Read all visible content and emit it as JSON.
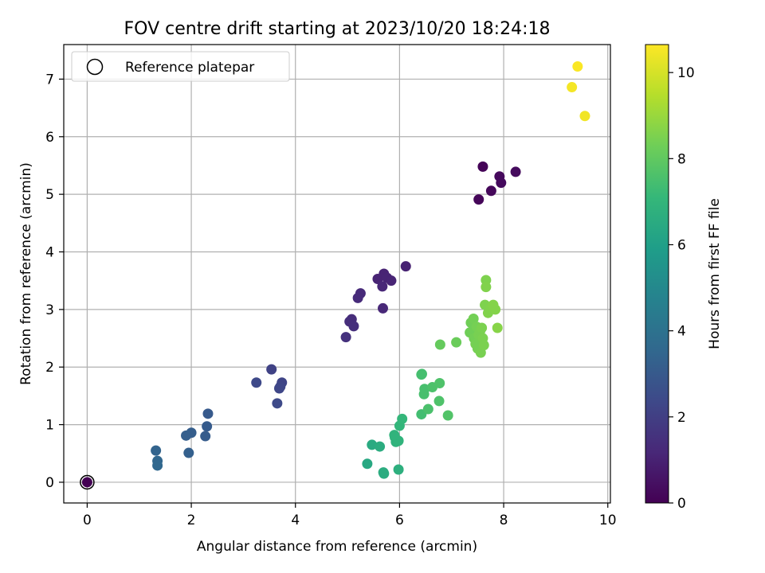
{
  "chart_data": {
    "type": "scatter",
    "title": "FOV centre drift starting at 2023/10/20 18:24:18",
    "xlabel": "Angular distance from reference (arcmin)",
    "ylabel": "Rotation from reference (arcmin)",
    "xlim": [
      -0.45,
      10.05
    ],
    "ylim": [
      -0.36,
      7.6
    ],
    "xticks": [
      0,
      2,
      4,
      6,
      8,
      10
    ],
    "yticks": [
      0,
      1,
      2,
      3,
      4,
      5,
      6,
      7
    ],
    "grid": true,
    "legend": {
      "position": "upper-left",
      "entries": [
        {
          "label": "Reference platepar",
          "marker": "open-circle"
        }
      ]
    },
    "colorbar": {
      "label": "Hours from first FF file",
      "range": [
        0,
        10.65
      ],
      "ticks": [
        0,
        2,
        4,
        6,
        8,
        10
      ],
      "colormap": "viridis"
    },
    "reference_point": {
      "x": 0,
      "y": 0
    },
    "points": [
      {
        "x": 0.0,
        "y": 0.0,
        "hours": 0.0
      },
      {
        "x": 7.6,
        "y": 5.48,
        "hours": 0.1
      },
      {
        "x": 7.52,
        "y": 4.91,
        "hours": 0.15
      },
      {
        "x": 7.76,
        "y": 5.06,
        "hours": 0.2
      },
      {
        "x": 7.92,
        "y": 5.31,
        "hours": 0.25
      },
      {
        "x": 7.95,
        "y": 5.2,
        "hours": 0.28
      },
      {
        "x": 8.23,
        "y": 5.39,
        "hours": 0.3
      },
      {
        "x": 6.12,
        "y": 3.75,
        "hours": 1.0
      },
      {
        "x": 5.58,
        "y": 3.53,
        "hours": 1.05
      },
      {
        "x": 5.7,
        "y": 3.62,
        "hours": 1.05
      },
      {
        "x": 5.76,
        "y": 3.55,
        "hours": 1.1
      },
      {
        "x": 5.84,
        "y": 3.5,
        "hours": 1.1
      },
      {
        "x": 5.67,
        "y": 3.4,
        "hours": 1.15
      },
      {
        "x": 5.68,
        "y": 3.02,
        "hours": 1.2
      },
      {
        "x": 5.25,
        "y": 3.28,
        "hours": 1.25
      },
      {
        "x": 5.2,
        "y": 3.2,
        "hours": 1.3
      },
      {
        "x": 5.08,
        "y": 2.83,
        "hours": 1.35
      },
      {
        "x": 5.04,
        "y": 2.79,
        "hours": 1.4
      },
      {
        "x": 5.12,
        "y": 2.71,
        "hours": 1.45
      },
      {
        "x": 4.97,
        "y": 2.52,
        "hours": 1.5
      },
      {
        "x": 3.54,
        "y": 1.96,
        "hours": 2.1
      },
      {
        "x": 3.74,
        "y": 1.73,
        "hours": 2.2
      },
      {
        "x": 3.71,
        "y": 1.66,
        "hours": 2.25
      },
      {
        "x": 3.69,
        "y": 1.63,
        "hours": 2.3
      },
      {
        "x": 3.25,
        "y": 1.73,
        "hours": 2.35
      },
      {
        "x": 3.65,
        "y": 1.37,
        "hours": 2.4
      },
      {
        "x": 2.32,
        "y": 1.19,
        "hours": 3.0
      },
      {
        "x": 2.3,
        "y": 0.97,
        "hours": 3.05
      },
      {
        "x": 2.27,
        "y": 0.8,
        "hours": 3.1
      },
      {
        "x": 2.0,
        "y": 0.86,
        "hours": 3.15
      },
      {
        "x": 1.9,
        "y": 0.81,
        "hours": 3.2
      },
      {
        "x": 1.95,
        "y": 0.51,
        "hours": 3.25
      },
      {
        "x": 1.32,
        "y": 0.55,
        "hours": 3.4
      },
      {
        "x": 1.35,
        "y": 0.37,
        "hours": 3.5
      },
      {
        "x": 1.35,
        "y": 0.29,
        "hours": 3.55
      },
      {
        "x": 5.38,
        "y": 0.32,
        "hours": 6.4
      },
      {
        "x": 5.47,
        "y": 0.65,
        "hours": 6.5
      },
      {
        "x": 5.62,
        "y": 0.62,
        "hours": 6.6
      },
      {
        "x": 5.69,
        "y": 0.17,
        "hours": 6.6
      },
      {
        "x": 5.7,
        "y": 0.15,
        "hours": 6.6
      },
      {
        "x": 5.98,
        "y": 0.22,
        "hours": 6.7
      },
      {
        "x": 5.91,
        "y": 0.78,
        "hours": 6.8
      },
      {
        "x": 5.93,
        "y": 0.7,
        "hours": 6.85
      },
      {
        "x": 5.98,
        "y": 0.72,
        "hours": 6.9
      },
      {
        "x": 5.9,
        "y": 0.82,
        "hours": 6.9
      },
      {
        "x": 6.0,
        "y": 0.98,
        "hours": 7.0
      },
      {
        "x": 6.05,
        "y": 1.1,
        "hours": 7.05
      },
      {
        "x": 6.42,
        "y": 1.18,
        "hours": 7.4
      },
      {
        "x": 6.42,
        "y": 1.87,
        "hours": 7.45
      },
      {
        "x": 6.43,
        "y": 1.88,
        "hours": 7.45
      },
      {
        "x": 6.48,
        "y": 1.62,
        "hours": 7.5
      },
      {
        "x": 6.47,
        "y": 1.53,
        "hours": 7.5
      },
      {
        "x": 6.55,
        "y": 1.27,
        "hours": 7.55
      },
      {
        "x": 6.63,
        "y": 1.65,
        "hours": 7.6
      },
      {
        "x": 6.77,
        "y": 1.72,
        "hours": 7.65
      },
      {
        "x": 6.76,
        "y": 1.41,
        "hours": 7.65
      },
      {
        "x": 6.93,
        "y": 1.16,
        "hours": 7.7
      },
      {
        "x": 6.78,
        "y": 2.39,
        "hours": 8.1
      },
      {
        "x": 7.09,
        "y": 2.43,
        "hours": 8.2
      },
      {
        "x": 7.35,
        "y": 2.6,
        "hours": 8.3
      },
      {
        "x": 7.37,
        "y": 2.77,
        "hours": 8.3
      },
      {
        "x": 7.42,
        "y": 2.84,
        "hours": 8.35
      },
      {
        "x": 7.43,
        "y": 2.5,
        "hours": 8.35
      },
      {
        "x": 7.46,
        "y": 2.4,
        "hours": 8.4
      },
      {
        "x": 7.48,
        "y": 2.7,
        "hours": 8.4
      },
      {
        "x": 7.5,
        "y": 2.32,
        "hours": 8.4
      },
      {
        "x": 7.52,
        "y": 2.56,
        "hours": 8.45
      },
      {
        "x": 7.55,
        "y": 2.63,
        "hours": 8.45
      },
      {
        "x": 7.56,
        "y": 2.25,
        "hours": 8.45
      },
      {
        "x": 7.58,
        "y": 2.68,
        "hours": 8.5
      },
      {
        "x": 7.6,
        "y": 2.5,
        "hours": 8.5
      },
      {
        "x": 7.62,
        "y": 2.38,
        "hours": 8.5
      },
      {
        "x": 7.64,
        "y": 3.08,
        "hours": 8.55
      },
      {
        "x": 7.66,
        "y": 3.51,
        "hours": 8.55
      },
      {
        "x": 7.66,
        "y": 3.39,
        "hours": 8.6
      },
      {
        "x": 7.7,
        "y": 2.94,
        "hours": 8.6
      },
      {
        "x": 7.75,
        "y": 3.02,
        "hours": 8.6
      },
      {
        "x": 7.8,
        "y": 3.08,
        "hours": 8.65
      },
      {
        "x": 7.84,
        "y": 3.0,
        "hours": 8.65
      },
      {
        "x": 7.88,
        "y": 2.68,
        "hours": 8.7
      },
      {
        "x": 9.42,
        "y": 7.22,
        "hours": 10.6
      },
      {
        "x": 9.31,
        "y": 6.86,
        "hours": 10.5
      },
      {
        "x": 9.56,
        "y": 6.36,
        "hours": 10.45
      }
    ]
  }
}
